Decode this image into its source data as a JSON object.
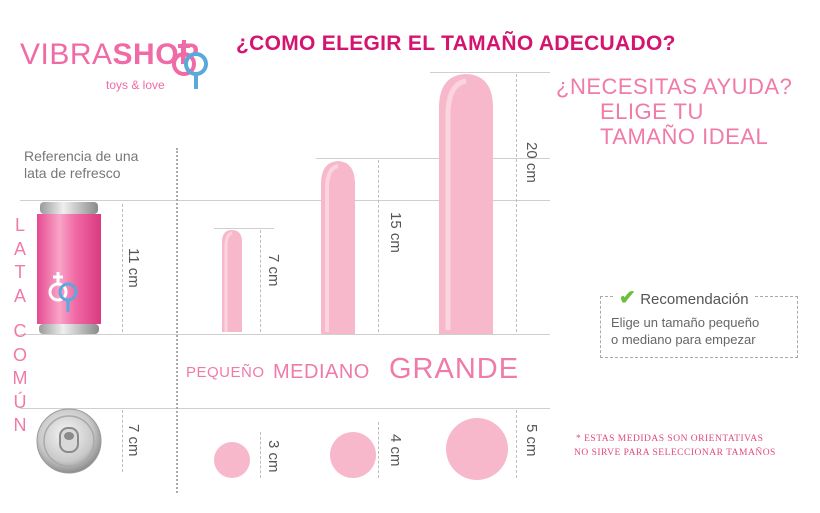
{
  "brand": {
    "name_part1": "VIBRA",
    "name_part2": "SHOP",
    "tagline": "toys & love"
  },
  "title": "¿COMO ELEGIR EL TAMAÑO ADECUADO?",
  "help": {
    "line1": "¿NECESITAS AYUDA?",
    "line2": "ELIGE TU",
    "line3": "TAMAÑO IDEAL"
  },
  "reference": {
    "line1": "Referencia de una",
    "line2": "lata de refresco"
  },
  "can_side_label": {
    "word1": [
      "L",
      "A",
      "T",
      "A"
    ],
    "word2": [
      "C",
      "O",
      "M",
      "Ú",
      "N"
    ]
  },
  "measurements": {
    "can_height": "11 cm",
    "can_diameter": "7 cm",
    "small_height": "7 cm",
    "medium_height": "15 cm",
    "large_height": "20 cm",
    "small_diameter": "3 cm",
    "medium_diameter": "4 cm",
    "large_diameter": "5 cm"
  },
  "sizes": {
    "small": "PEQUEÑO",
    "medium": "MEDIANO",
    "large": "GRANDE"
  },
  "recommendation": {
    "title": "Recomendación",
    "line1": "Elige un tamaño pequeño",
    "line2": "o mediano para empezar"
  },
  "disclaimer": {
    "line1": "* ESTAS MEDIDAS SON ORIENTATIVAS",
    "line2": "NO SIRVE PARA SELECCIONAR TAMAÑOS"
  },
  "colors": {
    "title": "#d4146e",
    "brand_pink": "#f06aa5",
    "brand_blue": "#5aa9dc",
    "toy_pink": "#f7b8cc",
    "help_text": "#f07aa8"
  }
}
